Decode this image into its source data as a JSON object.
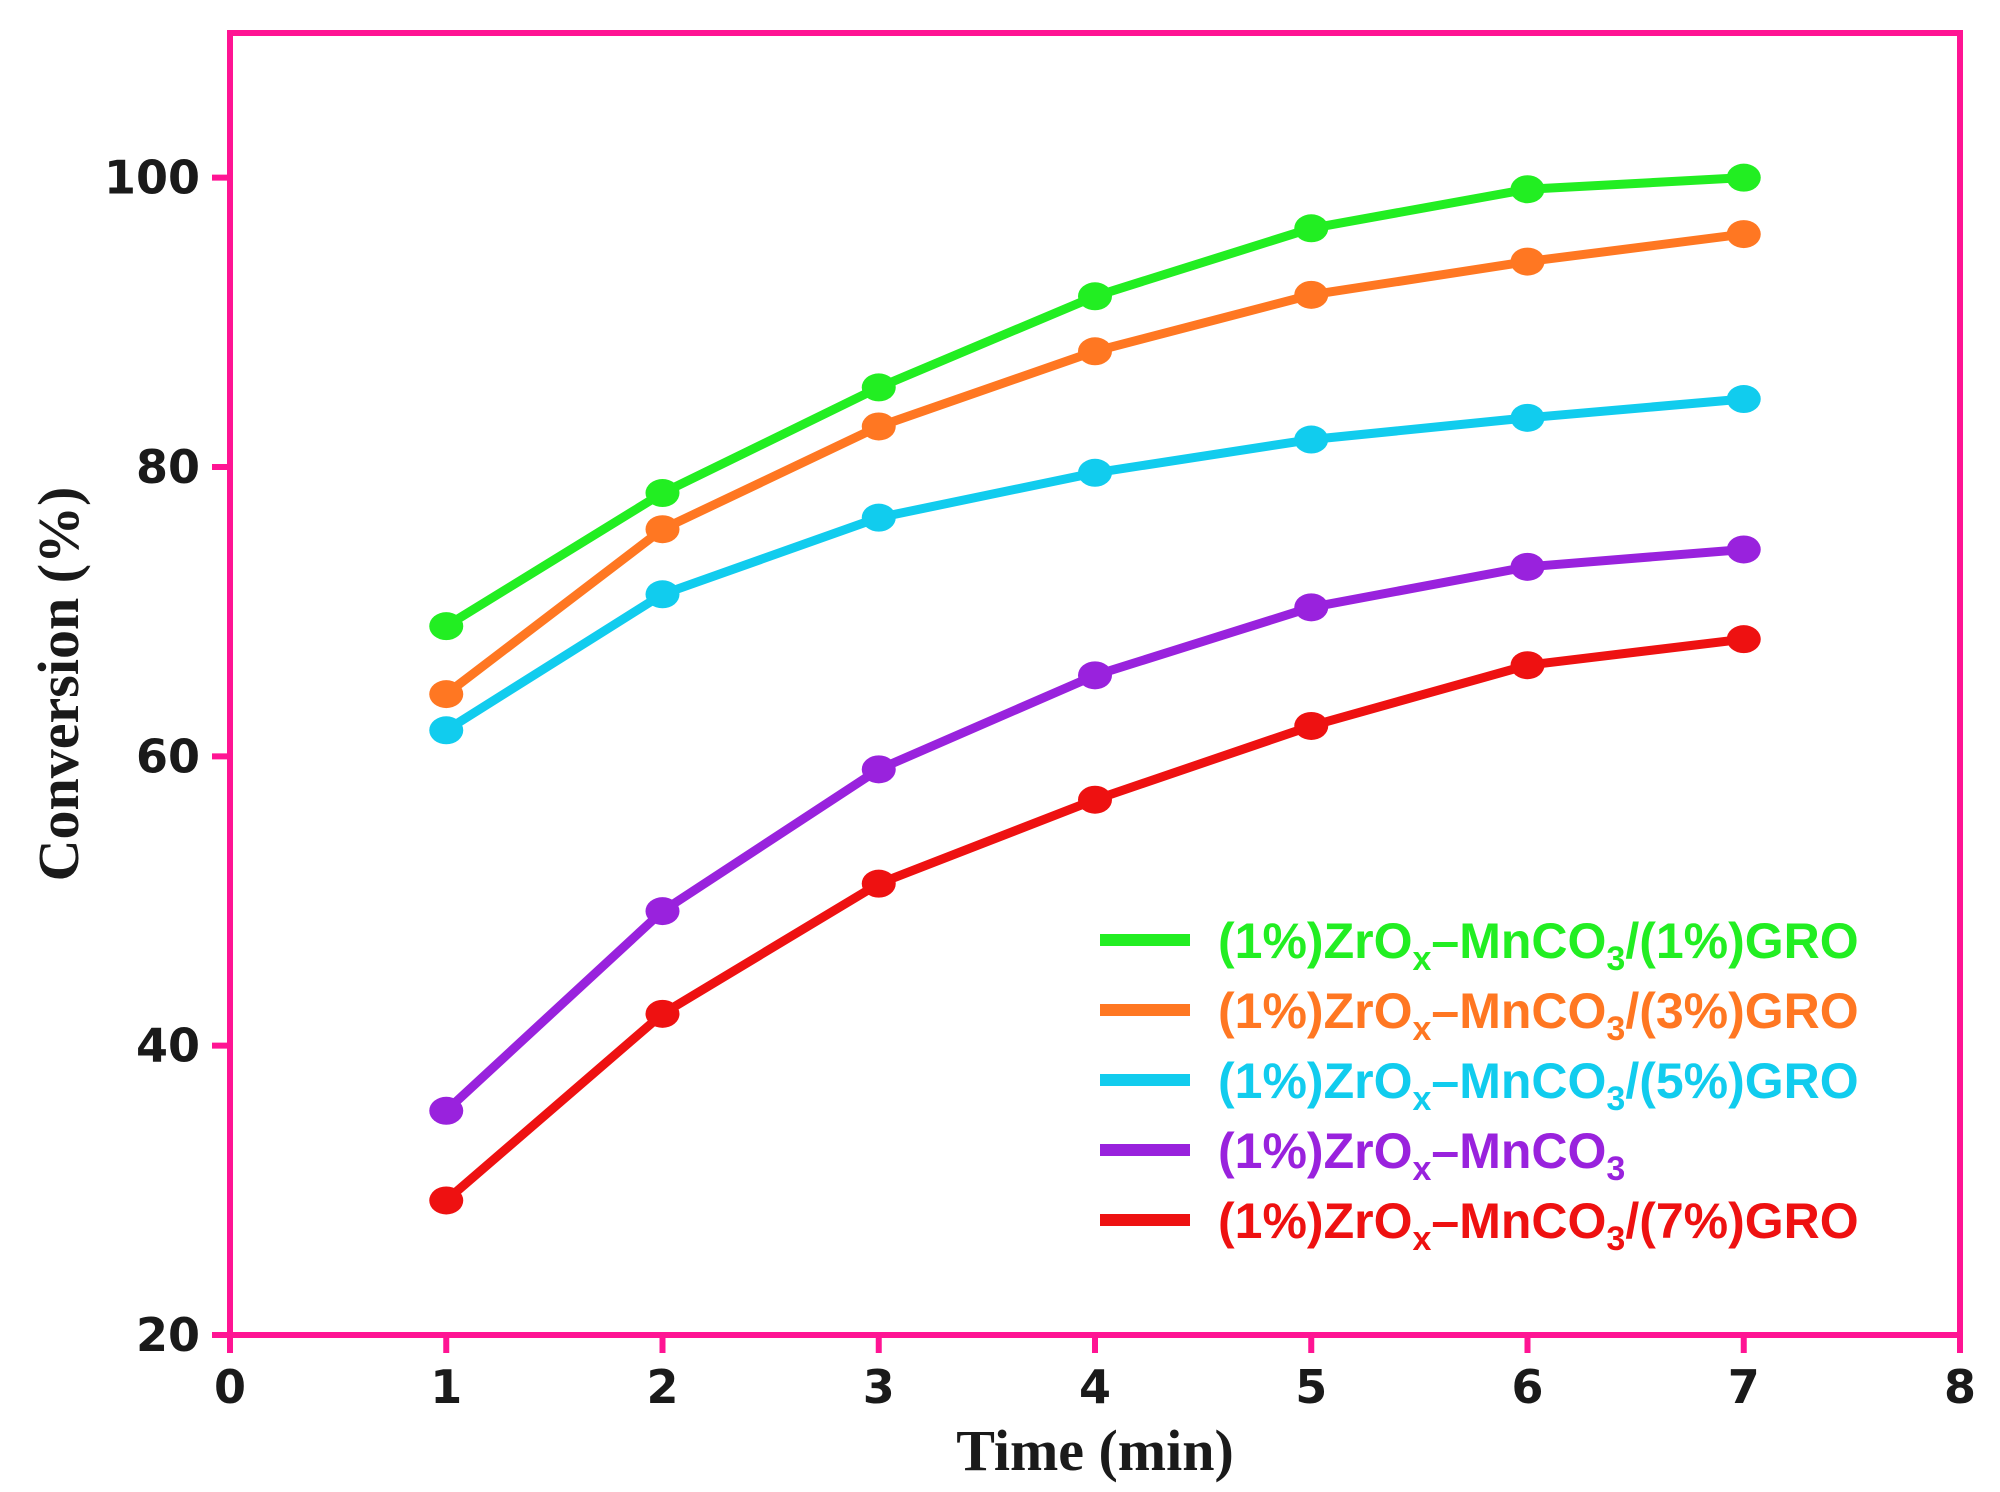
{
  "chart_data": {
    "type": "line",
    "title": "",
    "xlabel": "Time (min)",
    "ylabel": "Conversion (%)",
    "xlim": [
      0,
      8
    ],
    "ylim": [
      20,
      110
    ],
    "xticks": [
      "0",
      "1",
      "2",
      "3",
      "4",
      "5",
      "6",
      "7",
      "8"
    ],
    "yticks": [
      "20",
      "40",
      "60",
      "80",
      "100"
    ],
    "x": [
      1,
      2,
      3,
      4,
      5,
      6,
      7
    ],
    "frame_color": "#ff1493",
    "legend_position": "lower-right",
    "series": [
      {
        "name": "(1%)ZrOx–MnCO3/(1%)GRO",
        "label_parts": {
          "a": "(1%)ZrO",
          "b": "x",
          "c": "–MnCO",
          "d": "3",
          "e": "/(1%)GRO"
        },
        "color": "#22ee22",
        "values": [
          69.0,
          78.2,
          85.5,
          91.8,
          96.5,
          99.2,
          100.0
        ]
      },
      {
        "name": "(1%)ZrOx–MnCO3/(3%)GRO",
        "label_parts": {
          "a": "(1%)ZrO",
          "b": "x",
          "c": "–MnCO",
          "d": "3",
          "e": "/(3%)GRO"
        },
        "color": "#ff7722",
        "values": [
          64.3,
          75.7,
          82.8,
          88.0,
          91.9,
          94.2,
          96.1
        ]
      },
      {
        "name": "(1%)ZrOx–MnCO3/(5%)GRO",
        "label_parts": {
          "a": "(1%)ZrO",
          "b": "x",
          "c": "–MnCO",
          "d": "3",
          "e": "/(5%)GRO"
        },
        "color": "#11ccee",
        "values": [
          61.8,
          71.2,
          76.5,
          79.6,
          81.9,
          83.4,
          84.7
        ]
      },
      {
        "name": "(1%)ZrOx–MnCO3",
        "label_parts": {
          "a": "(1%)ZrO",
          "b": "x",
          "c": "–MnCO",
          "d": "3",
          "e": ""
        },
        "color": "#9922dd",
        "values": [
          35.5,
          49.3,
          59.1,
          65.6,
          70.3,
          73.1,
          74.3
        ]
      },
      {
        "name": "(1%)ZrOx–MnCO3/(7%)GRO",
        "label_parts": {
          "a": "(1%)ZrO",
          "b": "x",
          "c": "–MnCO",
          "d": "3",
          "e": "/(7%)GRO"
        },
        "color": "#ee1111",
        "values": [
          29.3,
          42.2,
          51.2,
          57.0,
          62.1,
          66.3,
          68.1
        ]
      }
    ]
  }
}
